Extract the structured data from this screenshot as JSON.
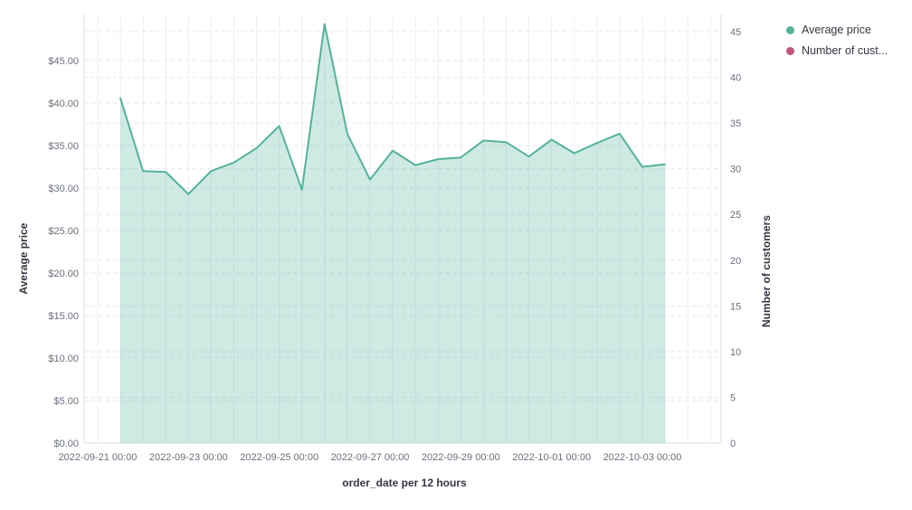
{
  "chart_data": {
    "type": "area",
    "title": "",
    "x_label": "order_date per 12 hours",
    "y_left_label": "Average price",
    "y_right_label": "Number of customers",
    "x_interval": "12 hours",
    "x": [
      "2022-09-21 12:00",
      "2022-09-22 00:00",
      "2022-09-22 12:00",
      "2022-09-23 00:00",
      "2022-09-23 12:00",
      "2022-09-24 00:00",
      "2022-09-24 12:00",
      "2022-09-25 00:00",
      "2022-09-25 12:00",
      "2022-09-26 00:00",
      "2022-09-26 12:00",
      "2022-09-27 00:00",
      "2022-09-27 12:00",
      "2022-09-28 00:00",
      "2022-09-28 12:00",
      "2022-09-29 00:00",
      "2022-09-29 12:00",
      "2022-09-30 00:00",
      "2022-09-30 12:00",
      "2022-10-01 00:00",
      "2022-10-01 12:00",
      "2022-10-02 00:00",
      "2022-10-02 12:00",
      "2022-10-03 00:00",
      "2022-10-03 12:00"
    ],
    "series": [
      {
        "name": "Average price",
        "type": "area",
        "axis": "left",
        "color": "#54b399",
        "fill_opacity": 0.28,
        "values": [
          40.6,
          32.0,
          31.9,
          29.3,
          32.0,
          33.0,
          34.7,
          37.3,
          29.8,
          49.3,
          36.4,
          31.0,
          34.4,
          32.7,
          33.4,
          33.6,
          35.6,
          35.4,
          33.7,
          35.7,
          34.1,
          35.3,
          36.4,
          32.5,
          32.8
        ]
      },
      {
        "name": "Number of customers",
        "type": "line",
        "axis": "right",
        "color": "#c4537c",
        "values": []
      }
    ],
    "legend": [
      {
        "label": "Average price",
        "color": "#54b399"
      },
      {
        "label": "Number of cust...",
        "color": "#c4537c"
      }
    ],
    "legend_position": "top-right",
    "grid": true,
    "y_left_range": [
      0,
      45
    ],
    "y_right_range": [
      0,
      45
    ],
    "y_left_ticks": [
      "$0.00",
      "$5.00",
      "$10.00",
      "$15.00",
      "$20.00",
      "$25.00",
      "$30.00",
      "$35.00",
      "$40.00",
      "$45.00"
    ],
    "y_right_ticks": [
      "0",
      "5",
      "10",
      "15",
      "20",
      "25",
      "30",
      "35",
      "40",
      "45"
    ],
    "x_ticks": [
      "2022-09-21 00:00",
      "2022-09-23 00:00",
      "2022-09-25 00:00",
      "2022-09-27 00:00",
      "2022-09-29 00:00",
      "2022-10-01 00:00",
      "2022-10-03 00:00"
    ]
  }
}
